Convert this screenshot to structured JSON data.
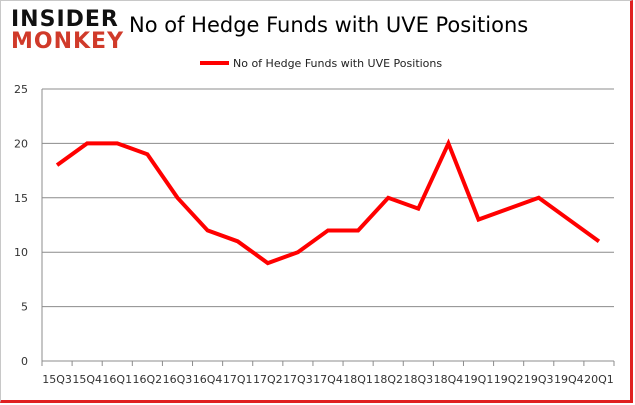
{
  "logo": {
    "line1": "INSIDER",
    "line2": "MONKEY"
  },
  "chart_data": {
    "type": "line",
    "title": "No of Hedge Funds with UVE Positions",
    "categories": [
      "15Q3",
      "15Q4",
      "16Q1",
      "16Q2",
      "16Q3",
      "16Q4",
      "17Q1",
      "17Q2",
      "17Q3",
      "17Q4",
      "18Q1",
      "18Q2",
      "18Q3",
      "18Q4",
      "19Q1",
      "19Q2",
      "19Q3",
      "19Q4",
      "20Q1"
    ],
    "series": [
      {
        "name": "No of Hedge Funds with UVE Positions",
        "color": "#ff0000",
        "values": [
          18,
          20,
          20,
          19,
          15,
          12,
          11,
          9,
          10,
          12,
          12,
          15,
          14,
          20,
          13,
          14,
          15,
          13,
          11
        ]
      }
    ],
    "ylim": [
      0,
      25
    ],
    "yticks": [
      0,
      5,
      10,
      15,
      20,
      25
    ],
    "grid": true,
    "legend": "top-center"
  }
}
